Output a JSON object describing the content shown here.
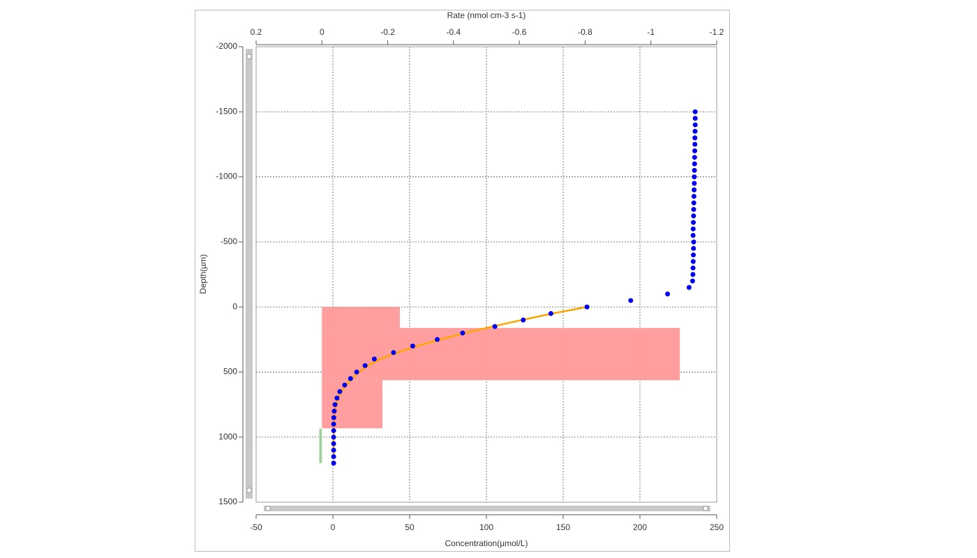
{
  "chart_data": {
    "type": "scatter",
    "xlabel": "Concentration(µmol/L)",
    "x2label": "Rate (nmol cm-3 s-1)",
    "ylabel": "Depth(µm)",
    "xlim": [
      -50,
      250
    ],
    "xticks": [
      -50,
      0,
      50,
      100,
      150,
      200,
      250
    ],
    "x2lim": [
      0.2,
      -1.2
    ],
    "x2ticks": [
      0.2,
      0,
      -0.2,
      -0.4,
      -0.6,
      -0.8,
      -1,
      -1.2
    ],
    "ylim": [
      -2000,
      1500
    ],
    "yticks": [
      -2000,
      -1500,
      -1000,
      -500,
      0,
      500,
      1000,
      1500
    ],
    "y_inverted": true,
    "grid": true,
    "series": [
      {
        "type": "bar",
        "axis": "x2",
        "color": "#ff9999",
        "bins": [
          0,
          161,
          563,
          932
        ],
        "values": [
          -0.237,
          -1.088,
          -0.184
        ]
      },
      {
        "type": "bar",
        "axis": "x2",
        "color": "#99cc99",
        "bins": [
          935,
          1200
        ],
        "values": [
          0.008
        ]
      },
      {
        "type": "line",
        "color": "#ffa500",
        "x": [
          165.5,
          143,
          123,
          104,
          86,
          70,
          55,
          42,
          31,
          23,
          17,
          12.5,
          8.5,
          5.5,
          3.5,
          2.2,
          1.4,
          1,
          0.8,
          0.6,
          0.5,
          0.5,
          0.5,
          0.5
        ],
        "y": [
          0,
          50,
          100,
          150,
          200,
          250,
          300,
          350,
          400,
          450,
          500,
          550,
          600,
          650,
          700,
          750,
          800,
          850,
          900,
          950,
          1000,
          1050,
          1100,
          1150
        ]
      },
      {
        "type": "scatter",
        "color": "#0000ee",
        "x": [
          236,
          236,
          236,
          235.9,
          235.8,
          235.8,
          235.7,
          235.6,
          235.6,
          235.5,
          235.4,
          235.4,
          235.3,
          235.2,
          235.1,
          235,
          234.9,
          234.8,
          234.7,
          234.6,
          235,
          234.9,
          234.8,
          234.7,
          234.6,
          234.5,
          234.3,
          232,
          218,
          194,
          165.5,
          142,
          124,
          105.5,
          84.5,
          68,
          52,
          39.5,
          27,
          21,
          15.5,
          11.5,
          7.7,
          4.5,
          2.7,
          1.4,
          0.9,
          0.6,
          0.5,
          0.5,
          0.5,
          0.5,
          0.5,
          0.5,
          0.5
        ],
        "y": [
          -1500,
          -1450,
          -1400,
          -1350,
          -1300,
          -1250,
          -1200,
          -1150,
          -1100,
          -1050,
          -1000,
          -950,
          -900,
          -850,
          -800,
          -750,
          -700,
          -650,
          -600,
          -550,
          -500,
          -450,
          -400,
          -350,
          -300,
          -250,
          -200,
          -150,
          -100,
          -50,
          0,
          50,
          100,
          150,
          200,
          250,
          300,
          350,
          400,
          450,
          500,
          550,
          600,
          650,
          700,
          750,
          800,
          850,
          900,
          950,
          1000,
          1050,
          1100,
          1150,
          1200
        ]
      }
    ]
  }
}
